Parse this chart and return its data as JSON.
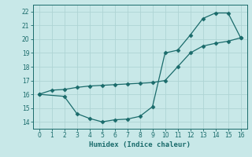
{
  "line1_x": [
    0,
    1,
    2,
    3,
    4,
    5,
    6,
    7,
    8,
    9,
    10,
    11,
    12,
    13,
    14,
    15,
    16
  ],
  "line1_y": [
    16.0,
    16.3,
    16.35,
    16.5,
    16.6,
    16.65,
    16.7,
    16.75,
    16.8,
    16.85,
    17.0,
    18.0,
    19.0,
    19.5,
    19.7,
    19.85,
    20.1
  ],
  "line2_x": [
    0,
    2,
    3,
    4,
    5,
    6,
    7,
    8,
    9,
    10,
    11,
    12,
    13,
    14,
    15,
    16
  ],
  "line2_y": [
    16.0,
    15.85,
    14.6,
    14.25,
    14.0,
    14.15,
    14.2,
    14.4,
    15.1,
    19.0,
    19.2,
    20.3,
    21.5,
    21.9,
    21.9,
    20.1
  ],
  "color": "#1a6b6b",
  "bg_color": "#c8e8e8",
  "grid_color": "#aed4d4",
  "xlabel": "Humidex (Indice chaleur)",
  "xlim": [
    -0.5,
    16.5
  ],
  "ylim": [
    13.5,
    22.5
  ],
  "xticks": [
    0,
    1,
    2,
    3,
    4,
    5,
    6,
    7,
    8,
    9,
    10,
    11,
    12,
    13,
    14,
    15,
    16
  ],
  "yticks": [
    14,
    15,
    16,
    17,
    18,
    19,
    20,
    21,
    22
  ],
  "marker": "D",
  "markersize": 2.5,
  "linewidth": 0.9
}
